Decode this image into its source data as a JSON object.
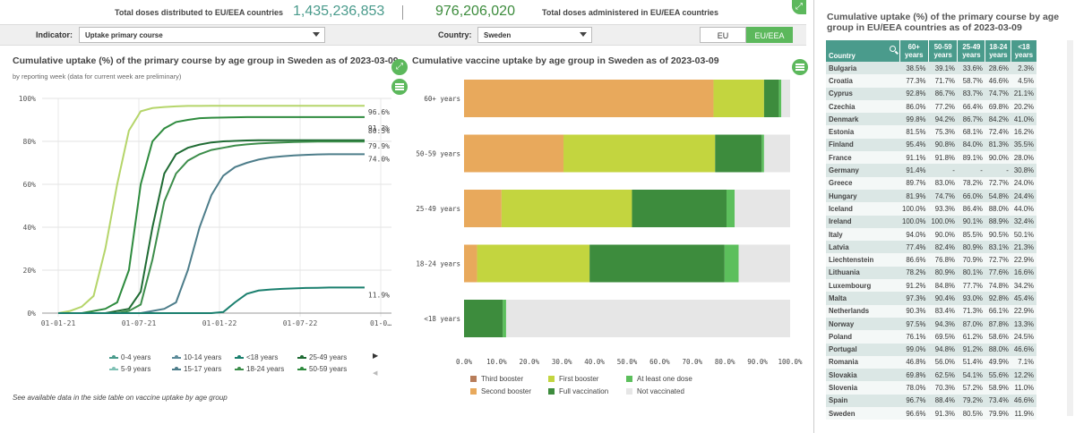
{
  "stats": {
    "distributed_label": "Total doses distributed to EU/EEA countries",
    "distributed_value": "1,435,236,853",
    "administered_value": "976,206,020",
    "administered_label": "Total doses administered in EU/EEA countries"
  },
  "filters": {
    "indicator_label": "Indicator:",
    "indicator_value": "Uptake primary course",
    "country_label": "Country:",
    "country_value": "Sweden",
    "toggle_eu": "EU",
    "toggle_eueea": "EU/EEA"
  },
  "line_panel": {
    "title": "Cumulative uptake (%) of the primary course by age group in Sweden as of 2023-03-09",
    "subtitle": "by reporting week (data for current week are preliminary)",
    "footnote": "See available data in the side table on vaccine uptake by age group"
  },
  "bar_panel": {
    "title": "Cumulative vaccine uptake by age group in Sweden as of 2023-03-09"
  },
  "chart_data": [
    {
      "type": "line",
      "title": "Cumulative uptake (%) of the primary course by age group in Sweden as of 2023-03-09",
      "ytick_labels": [
        "0%",
        "20%",
        "40%",
        "60%",
        "80%",
        "100%"
      ],
      "xtick_labels": [
        "01-01-21",
        "01-07-21",
        "01-01-22",
        "01-07-22",
        "01-0…"
      ],
      "ylim": [
        0,
        100
      ],
      "grid": true,
      "legend_position": "bottom",
      "end_labels": [
        "96.6%",
        "91.3%",
        "80.5%",
        "79.9%",
        "74.0%",
        "11.9%"
      ],
      "series": [
        {
          "name": "60+ years",
          "color": "#b5d56a",
          "values": [
            0,
            1,
            3,
            8,
            30,
            60,
            85,
            94,
            95.5,
            96,
            96.3,
            96.5,
            96.5,
            96.6,
            96.6,
            96.6,
            96.6,
            96.6,
            96.6,
            96.6,
            96.6,
            96.6,
            96.6,
            96.6,
            96.6,
            96.6,
            96.6
          ]
        },
        {
          "name": "50-59 years",
          "color": "#2e8b3e",
          "values": [
            0,
            0,
            0,
            1,
            2,
            5,
            20,
            60,
            80,
            86,
            89,
            90,
            90.8,
            91,
            91.1,
            91.2,
            91.3,
            91.3,
            91.3,
            91.3,
            91.3,
            91.3,
            91.3,
            91.3,
            91.3,
            91.3,
            91.3
          ]
        },
        {
          "name": "25-49 years",
          "color": "#1f6b33",
          "values": [
            0,
            0,
            0,
            0,
            0,
            1,
            2,
            10,
            40,
            65,
            74,
            77,
            78.5,
            79.5,
            80,
            80.2,
            80.4,
            80.5,
            80.5,
            80.5,
            80.5,
            80.5,
            80.5,
            80.5,
            80.5,
            80.5,
            80.5
          ]
        },
        {
          "name": "18-24 years",
          "color": "#3c8d4a",
          "values": [
            0,
            0,
            0,
            0,
            0,
            0,
            1,
            4,
            25,
            52,
            65,
            71,
            74,
            76,
            77,
            78,
            78.6,
            79,
            79.3,
            79.5,
            79.7,
            79.8,
            79.9,
            79.9,
            79.9,
            79.9,
            79.9
          ]
        },
        {
          "name": "15-17 years",
          "color": "#4d7d8a",
          "values": [
            0,
            0,
            0,
            0,
            0,
            0,
            0,
            0,
            1,
            2,
            5,
            20,
            40,
            55,
            64,
            68,
            70,
            71.5,
            72.5,
            73,
            73.4,
            73.7,
            73.9,
            74,
            74,
            74,
            74
          ]
        },
        {
          "name": "<18 years",
          "color": "#1a7f6e",
          "values": [
            0,
            0,
            0,
            0,
            0,
            0,
            0,
            0,
            0,
            0,
            0,
            0,
            0,
            0,
            0.5,
            5,
            9,
            10.5,
            11,
            11.3,
            11.5,
            11.7,
            11.8,
            11.9,
            11.9,
            11.9,
            11.9
          ]
        }
      ],
      "legend_entries": [
        {
          "name": "0-4 years",
          "color": "#4a9b8c"
        },
        {
          "name": "5-9 years",
          "color": "#7fc1b5"
        },
        {
          "name": "10-14 years",
          "color": "#5a8a99"
        },
        {
          "name": "15-17 years",
          "color": "#4d7d8a"
        },
        {
          "name": "<18 years",
          "color": "#1a7f6e"
        },
        {
          "name": "18-24 years",
          "color": "#3c8d4a"
        },
        {
          "name": "25-49 years",
          "color": "#1f6b33"
        },
        {
          "name": "50-59 years",
          "color": "#2e8b3e"
        }
      ]
    },
    {
      "type": "bar",
      "title": "Cumulative vaccine uptake by age group in Sweden as of 2023-03-09",
      "stacked": true,
      "orientation": "horizontal",
      "categories": [
        "60+ years",
        "50-59 years",
        "25-49 years",
        "18-24 years",
        "<18 years"
      ],
      "xtick_labels": [
        "0.0%",
        "10.0%",
        "20.0%",
        "30.0%",
        "40.0%",
        "50.0%",
        "60.0%",
        "70.0%",
        "80.0%",
        "90.0%",
        "100.0%"
      ],
      "xlim": [
        0,
        100
      ],
      "legend_position": "bottom",
      "series": [
        {
          "name": "Third booster",
          "color": "#b87d5a",
          "values": [
            0,
            0,
            0,
            0,
            0
          ]
        },
        {
          "name": "Second booster",
          "color": "#e8a95c",
          "values": [
            76.5,
            30.5,
            11.5,
            4,
            0
          ]
        },
        {
          "name": "First booster",
          "color": "#c3d53f",
          "values": [
            15.5,
            46.5,
            40,
            34.5,
            0
          ]
        },
        {
          "name": "Full vaccination",
          "color": "#3d8c3d",
          "values": [
            4.6,
            14.3,
            29,
            41.4,
            11.9
          ]
        },
        {
          "name": "At least one dose",
          "color": "#5cbf5c",
          "values": [
            0.7,
            0.7,
            2.5,
            4.3,
            1
          ]
        },
        {
          "name": "Not vaccinated",
          "color": "#e6e6e6",
          "values": [
            2.7,
            8,
            17,
            15.8,
            87.1
          ]
        }
      ]
    }
  ],
  "uptake_table": {
    "title": "Cumulative uptake (%) of the primary course by age group in EU/EEA countries as of 2023-03-09",
    "headers": [
      "Country",
      "60+\nyears",
      "50-59\nyears",
      "25-49\nyears",
      "18-24\nyears",
      "<18\nyears"
    ],
    "rows": [
      [
        "Bulgaria",
        "38.5%",
        "39.1%",
        "33.6%",
        "28.6%",
        "2.3%"
      ],
      [
        "Croatia",
        "77.3%",
        "71.7%",
        "58.7%",
        "46.6%",
        "4.5%"
      ],
      [
        "Cyprus",
        "92.8%",
        "86.7%",
        "83.7%",
        "74.7%",
        "21.1%"
      ],
      [
        "Czechia",
        "86.0%",
        "77.2%",
        "66.4%",
        "69.8%",
        "20.2%"
      ],
      [
        "Denmark",
        "99.8%",
        "94.2%",
        "86.7%",
        "84.2%",
        "41.0%"
      ],
      [
        "Estonia",
        "81.5%",
        "75.3%",
        "68.1%",
        "72.4%",
        "16.2%"
      ],
      [
        "Finland",
        "95.4%",
        "90.8%",
        "84.0%",
        "81.3%",
        "35.5%"
      ],
      [
        "France",
        "91.1%",
        "91.8%",
        "89.1%",
        "90.0%",
        "28.0%"
      ],
      [
        "Germany",
        "91.4%",
        "-",
        "-",
        "-",
        "30.8%"
      ],
      [
        "Greece",
        "89.7%",
        "83.0%",
        "78.2%",
        "72.7%",
        "24.0%"
      ],
      [
        "Hungary",
        "81.9%",
        "74.7%",
        "66.0%",
        "54.8%",
        "24.4%"
      ],
      [
        "Iceland",
        "100.0%",
        "93.3%",
        "86.4%",
        "88.0%",
        "44.0%"
      ],
      [
        "Ireland",
        "100.0%",
        "100.0%",
        "90.1%",
        "88.9%",
        "32.4%"
      ],
      [
        "Italy",
        "94.0%",
        "90.0%",
        "85.5%",
        "90.5%",
        "50.1%"
      ],
      [
        "Latvia",
        "77.4%",
        "82.4%",
        "80.9%",
        "83.1%",
        "21.3%"
      ],
      [
        "Liechtenstein",
        "86.6%",
        "76.8%",
        "70.9%",
        "72.7%",
        "22.9%"
      ],
      [
        "Lithuania",
        "78.2%",
        "80.9%",
        "80.1%",
        "77.6%",
        "16.6%"
      ],
      [
        "Luxembourg",
        "91.2%",
        "84.8%",
        "77.7%",
        "74.8%",
        "34.2%"
      ],
      [
        "Malta",
        "97.3%",
        "90.4%",
        "93.0%",
        "92.8%",
        "45.4%"
      ],
      [
        "Netherlands",
        "90.3%",
        "83.4%",
        "71.3%",
        "66.1%",
        "22.9%"
      ],
      [
        "Norway",
        "97.5%",
        "94.3%",
        "87.0%",
        "87.8%",
        "13.3%"
      ],
      [
        "Poland",
        "76.1%",
        "69.5%",
        "61.2%",
        "58.6%",
        "24.5%"
      ],
      [
        "Portugal",
        "99.0%",
        "94.8%",
        "91.2%",
        "88.0%",
        "46.6%"
      ],
      [
        "Romania",
        "46.8%",
        "56.0%",
        "51.4%",
        "49.9%",
        "7.1%"
      ],
      [
        "Slovakia",
        "69.8%",
        "62.5%",
        "54.1%",
        "55.6%",
        "12.2%"
      ],
      [
        "Slovenia",
        "78.0%",
        "70.3%",
        "57.2%",
        "58.9%",
        "11.0%"
      ],
      [
        "Spain",
        "96.7%",
        "88.4%",
        "79.2%",
        "73.4%",
        "46.6%"
      ],
      [
        "Sweden",
        "96.6%",
        "91.3%",
        "80.5%",
        "79.9%",
        "11.9%"
      ]
    ]
  },
  "icons": {
    "menu": "hamburger-menu-icon",
    "expand": "expand-arrows-icon",
    "search": "search-icon",
    "corner": "resize-corner-icon"
  }
}
